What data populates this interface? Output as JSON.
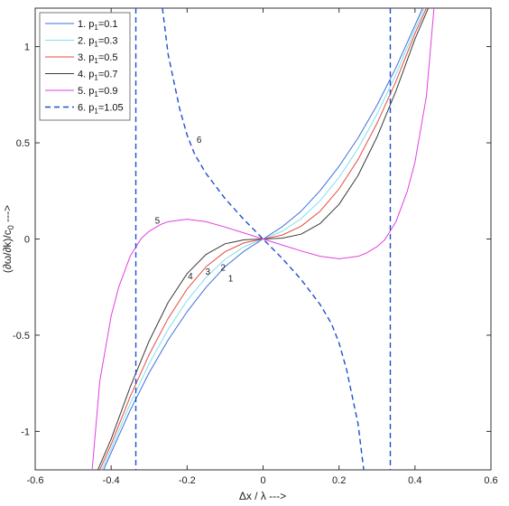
{
  "chart_data": {
    "type": "line",
    "xlabel": "Δx / λ --->",
    "ylabel": "(∂ω/∂k)/c",
    "ylabel_sub": "0",
    "ylabel_suffix": " --->",
    "xlim": [
      -0.6,
      0.6
    ],
    "ylim": [
      -1.2,
      1.2
    ],
    "xticks": [
      "-0.6",
      "-0.4",
      "-0.2",
      "0",
      "0.2",
      "0.4",
      "0.6"
    ],
    "xtick_values": [
      -0.6,
      -0.4,
      -0.2,
      0,
      0.2,
      0.4,
      0.6
    ],
    "yticks": [
      "-1",
      "-0.5",
      "0",
      "0.5",
      "1"
    ],
    "ytick_values": [
      -1,
      -0.5,
      0,
      0.5,
      1
    ],
    "grid": false,
    "legend_position": "top-left",
    "series": [
      {
        "legend": "1.  p",
        "sub": "1",
        "eq": "=0.1",
        "label": "1",
        "color": "#3a6fe0",
        "dash": false,
        "points": [
          [
            -0.42,
            -1.2
          ],
          [
            -0.4,
            -1.111
          ],
          [
            -0.35,
            -0.891
          ],
          [
            -0.3,
            -0.695
          ],
          [
            -0.25,
            -0.525
          ],
          [
            -0.2,
            -0.378
          ],
          [
            -0.15,
            -0.251
          ],
          [
            -0.1,
            -0.144
          ],
          [
            -0.05,
            -0.063
          ],
          [
            0,
            0
          ],
          [
            0.05,
            0.063
          ],
          [
            0.1,
            0.144
          ],
          [
            0.15,
            0.251
          ],
          [
            0.2,
            0.378
          ],
          [
            0.25,
            0.525
          ],
          [
            0.3,
            0.695
          ],
          [
            0.35,
            0.891
          ],
          [
            0.4,
            1.111
          ],
          [
            0.42,
            1.2
          ]
        ]
      },
      {
        "legend": "2.  p",
        "sub": "1",
        "eq": "=0.3",
        "label": "2",
        "color": "#7fe0f0",
        "dash": false,
        "points": [
          [
            -0.425,
            -1.2
          ],
          [
            -0.4,
            -1.091
          ],
          [
            -0.35,
            -0.856
          ],
          [
            -0.3,
            -0.648
          ],
          [
            -0.25,
            -0.47
          ],
          [
            -0.2,
            -0.32
          ],
          [
            -0.15,
            -0.199
          ],
          [
            -0.1,
            -0.105
          ],
          [
            -0.05,
            -0.04
          ],
          [
            0,
            0
          ],
          [
            0.05,
            0.04
          ],
          [
            0.1,
            0.105
          ],
          [
            0.15,
            0.199
          ],
          [
            0.2,
            0.32
          ],
          [
            0.25,
            0.47
          ],
          [
            0.3,
            0.648
          ],
          [
            0.35,
            0.856
          ],
          [
            0.4,
            1.091
          ],
          [
            0.425,
            1.2
          ]
        ]
      },
      {
        "legend": "3.  p",
        "sub": "1",
        "eq": "=0.5",
        "label": "3",
        "color": "#e54b3c",
        "dash": false,
        "points": [
          [
            -0.43,
            -1.2
          ],
          [
            -0.4,
            -1.068
          ],
          [
            -0.35,
            -0.82
          ],
          [
            -0.3,
            -0.601
          ],
          [
            -0.25,
            -0.413
          ],
          [
            -0.2,
            -0.26
          ],
          [
            -0.15,
            -0.144
          ],
          [
            -0.1,
            -0.066
          ],
          [
            -0.05,
            -0.02
          ],
          [
            0,
            0
          ],
          [
            0.05,
            0.02
          ],
          [
            0.1,
            0.066
          ],
          [
            0.15,
            0.144
          ],
          [
            0.2,
            0.26
          ],
          [
            0.25,
            0.413
          ],
          [
            0.3,
            0.601
          ],
          [
            0.35,
            0.82
          ],
          [
            0.4,
            1.068
          ],
          [
            0.43,
            1.2
          ]
        ]
      },
      {
        "legend": "4.  p",
        "sub": "1",
        "eq": "=0.7",
        "label": "4",
        "color": "#3a3a3a",
        "dash": false,
        "points": [
          [
            -0.435,
            -1.2
          ],
          [
            -0.4,
            -1.04
          ],
          [
            -0.35,
            -0.77
          ],
          [
            -0.3,
            -0.53
          ],
          [
            -0.25,
            -0.33
          ],
          [
            -0.2,
            -0.18
          ],
          [
            -0.15,
            -0.08
          ],
          [
            -0.1,
            -0.025
          ],
          [
            -0.05,
            -0.004
          ],
          [
            0,
            0
          ],
          [
            0.05,
            0.004
          ],
          [
            0.1,
            0.025
          ],
          [
            0.15,
            0.08
          ],
          [
            0.2,
            0.18
          ],
          [
            0.25,
            0.33
          ],
          [
            0.3,
            0.53
          ],
          [
            0.35,
            0.77
          ],
          [
            0.4,
            1.04
          ],
          [
            0.435,
            1.2
          ]
        ]
      },
      {
        "legend": "5.  p",
        "sub": "1",
        "eq": "=0.9",
        "label": "5",
        "color": "#e040e0",
        "dash": false,
        "points": [
          [
            -0.45,
            -1.2
          ],
          [
            -0.43,
            -0.74
          ],
          [
            -0.4,
            -0.4
          ],
          [
            -0.38,
            -0.25
          ],
          [
            -0.35,
            -0.09
          ],
          [
            -0.32,
            0.005
          ],
          [
            -0.3,
            0.04
          ],
          [
            -0.27,
            0.075
          ],
          [
            -0.25,
            0.09
          ],
          [
            -0.2,
            0.103
          ],
          [
            -0.15,
            0.09
          ],
          [
            -0.1,
            0.062
          ],
          [
            -0.05,
            0.031
          ],
          [
            0,
            0
          ],
          [
            0.05,
            -0.031
          ],
          [
            0.1,
            -0.062
          ],
          [
            0.15,
            -0.09
          ],
          [
            0.2,
            -0.103
          ],
          [
            0.25,
            -0.09
          ],
          [
            0.27,
            -0.075
          ],
          [
            0.3,
            -0.04
          ],
          [
            0.32,
            -0.005
          ],
          [
            0.35,
            0.09
          ],
          [
            0.38,
            0.25
          ],
          [
            0.4,
            0.4
          ],
          [
            0.43,
            0.74
          ],
          [
            0.45,
            1.2
          ]
        ]
      },
      {
        "legend": "6.  p",
        "sub": "1",
        "eq": "=1.05",
        "label": "6",
        "color": "#1f4fd0",
        "dash": true,
        "points": [
          [
            -0.265,
            1.2
          ],
          [
            -0.25,
            0.96
          ],
          [
            -0.22,
            0.68
          ],
          [
            -0.2,
            0.54
          ],
          [
            -0.18,
            0.44
          ],
          [
            -0.15,
            0.34
          ],
          [
            -0.1,
            0.21
          ],
          [
            -0.05,
            0.1
          ],
          [
            0,
            0
          ],
          [
            0.05,
            -0.1
          ],
          [
            0.1,
            -0.21
          ],
          [
            0.15,
            -0.34
          ],
          [
            0.18,
            -0.44
          ],
          [
            0.2,
            -0.54
          ],
          [
            0.22,
            -0.68
          ],
          [
            0.25,
            -0.96
          ],
          [
            0.265,
            -1.2
          ]
        ],
        "asymptotes": [
          -0.335,
          0.335
        ]
      }
    ],
    "curve_labels": [
      {
        "text": "6",
        "x": -0.175,
        "y": 0.5
      },
      {
        "text": "5",
        "x": -0.285,
        "y": 0.08
      },
      {
        "text": "4",
        "x": -0.198,
        "y": -0.21
      },
      {
        "text": "3",
        "x": -0.152,
        "y": -0.185
      },
      {
        "text": "2",
        "x": -0.112,
        "y": -0.165
      },
      {
        "text": "1",
        "x": -0.092,
        "y": -0.22
      }
    ]
  }
}
